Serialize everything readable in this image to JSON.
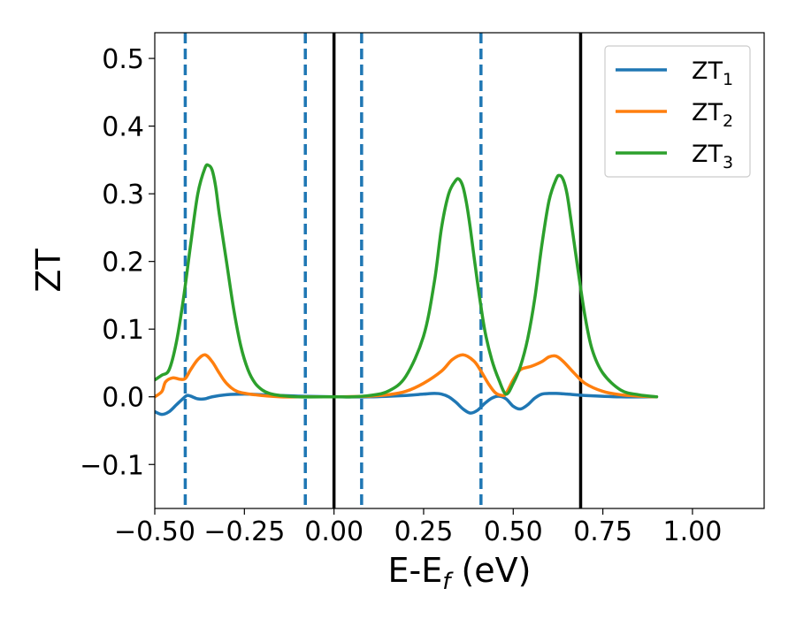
{
  "chart_data": {
    "type": "line",
    "xlabel": {
      "main": "E-E",
      "sub": "f",
      "suffix": " (eV)"
    },
    "ylabel": "ZT",
    "xlim": [
      -0.5,
      1.2
    ],
    "ylim": [
      -0.165,
      0.538
    ],
    "xticks": [
      -0.5,
      -0.25,
      0.0,
      0.25,
      0.5,
      0.75,
      1.0
    ],
    "xtick_labels": [
      "−0.50",
      "−0.25",
      "0.00",
      "0.25",
      "0.50",
      "0.75",
      "1.00"
    ],
    "yticks": [
      -0.1,
      0.0,
      0.1,
      0.2,
      0.3,
      0.4,
      0.5
    ],
    "ytick_labels": [
      "−0.1",
      "0.0",
      "0.1",
      "0.2",
      "0.3",
      "0.4",
      "0.5"
    ],
    "grid": false,
    "legend_position": "top-right",
    "vlines_dashed": [
      -0.415,
      -0.08,
      0.077,
      0.41
    ],
    "vlines_solid": [
      0.0,
      0.688
    ],
    "series": [
      {
        "name": "ZT",
        "sub": "1",
        "color": "#1f77b4",
        "x": [
          -0.5,
          -0.48,
          -0.46,
          -0.44,
          -0.42,
          -0.41,
          -0.4,
          -0.38,
          -0.36,
          -0.34,
          -0.3,
          -0.25,
          -0.2,
          -0.1,
          0.0,
          0.1,
          0.2,
          0.25,
          0.28,
          0.3,
          0.32,
          0.34,
          0.36,
          0.38,
          0.4,
          0.42,
          0.44,
          0.46,
          0.48,
          0.5,
          0.52,
          0.54,
          0.56,
          0.58,
          0.6,
          0.62,
          0.65,
          0.7,
          0.8,
          0.9
        ],
        "y": [
          -0.022,
          -0.026,
          -0.022,
          -0.012,
          -0.002,
          0.002,
          0.001,
          -0.003,
          -0.003,
          0.0,
          0.003,
          0.004,
          0.003,
          0.001,
          0.0,
          0.0,
          0.002,
          0.004,
          0.005,
          0.004,
          0.0,
          -0.008,
          -0.018,
          -0.024,
          -0.02,
          -0.01,
          -0.002,
          0.001,
          -0.003,
          -0.014,
          -0.018,
          -0.012,
          -0.002,
          0.004,
          0.005,
          0.005,
          0.004,
          0.002,
          0.0,
          0.0
        ]
      },
      {
        "name": "ZT",
        "sub": "2",
        "color": "#ff7f0e",
        "x": [
          -0.5,
          -0.48,
          -0.47,
          -0.45,
          -0.43,
          -0.415,
          -0.4,
          -0.38,
          -0.36,
          -0.34,
          -0.32,
          -0.3,
          -0.27,
          -0.22,
          -0.15,
          -0.1,
          0.0,
          0.1,
          0.15,
          0.2,
          0.25,
          0.3,
          0.33,
          0.36,
          0.39,
          0.41,
          0.43,
          0.45,
          0.47,
          0.48,
          0.5,
          0.52,
          0.55,
          0.58,
          0.6,
          0.62,
          0.64,
          0.67,
          0.7,
          0.75,
          0.8,
          0.85,
          0.9
        ],
        "y": [
          0.0,
          0.008,
          0.022,
          0.028,
          0.026,
          0.027,
          0.04,
          0.055,
          0.062,
          0.052,
          0.035,
          0.02,
          0.008,
          0.003,
          0.0,
          0.0,
          0.0,
          0.001,
          0.003,
          0.008,
          0.02,
          0.038,
          0.055,
          0.062,
          0.053,
          0.038,
          0.02,
          0.006,
          0.002,
          0.005,
          0.025,
          0.04,
          0.045,
          0.052,
          0.059,
          0.06,
          0.052,
          0.035,
          0.02,
          0.008,
          0.003,
          0.001,
          0.0
        ]
      },
      {
        "name": "ZT",
        "sub": "3",
        "color": "#2ca02c",
        "x": [
          -0.5,
          -0.48,
          -0.46,
          -0.44,
          -0.42,
          -0.4,
          -0.38,
          -0.36,
          -0.35,
          -0.34,
          -0.33,
          -0.32,
          -0.3,
          -0.28,
          -0.26,
          -0.24,
          -0.22,
          -0.2,
          -0.18,
          -0.15,
          -0.1,
          0.0,
          0.05,
          0.1,
          0.15,
          0.2,
          0.25,
          0.28,
          0.3,
          0.32,
          0.34,
          0.35,
          0.36,
          0.37,
          0.38,
          0.4,
          0.42,
          0.44,
          0.46,
          0.48,
          0.5,
          0.52,
          0.54,
          0.56,
          0.58,
          0.6,
          0.62,
          0.63,
          0.64,
          0.65,
          0.66,
          0.68,
          0.7,
          0.72,
          0.75,
          0.8,
          0.85,
          0.9
        ],
        "y": [
          0.025,
          0.032,
          0.04,
          0.08,
          0.145,
          0.225,
          0.3,
          0.338,
          0.342,
          0.335,
          0.31,
          0.27,
          0.2,
          0.13,
          0.075,
          0.04,
          0.02,
          0.01,
          0.005,
          0.002,
          0.0,
          0.0,
          0.0,
          0.002,
          0.008,
          0.03,
          0.09,
          0.17,
          0.25,
          0.3,
          0.32,
          0.321,
          0.31,
          0.285,
          0.25,
          0.17,
          0.1,
          0.055,
          0.025,
          0.004,
          0.02,
          0.045,
          0.085,
          0.145,
          0.225,
          0.29,
          0.322,
          0.327,
          0.32,
          0.3,
          0.265,
          0.19,
          0.12,
          0.07,
          0.035,
          0.01,
          0.003,
          0.0
        ]
      }
    ]
  }
}
